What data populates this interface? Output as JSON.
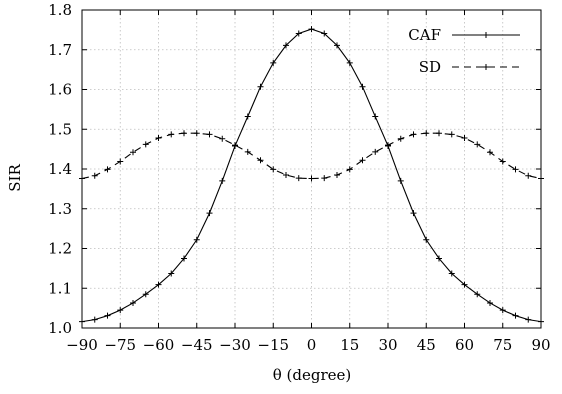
{
  "chart_data": {
    "type": "line",
    "xlabel": "θ (degree)",
    "ylabel": "SIR",
    "xlim": [
      -90,
      90
    ],
    "ylim": [
      1.0,
      1.8
    ],
    "x_ticks": [
      -90,
      -75,
      -60,
      -45,
      -30,
      -15,
      0,
      15,
      30,
      45,
      60,
      75,
      90
    ],
    "y_ticks": [
      1.0,
      1.1,
      1.2,
      1.3,
      1.4,
      1.5,
      1.6,
      1.7,
      1.8
    ],
    "grid": true,
    "legend_position": "top-right",
    "x": [
      -90,
      -85,
      -80,
      -75,
      -70,
      -65,
      -60,
      -55,
      -50,
      -45,
      -40,
      -35,
      -30,
      -25,
      -20,
      -15,
      -10,
      -5,
      0,
      5,
      10,
      15,
      20,
      25,
      30,
      35,
      40,
      45,
      50,
      55,
      60,
      65,
      70,
      75,
      80,
      85,
      90
    ],
    "series": [
      {
        "name": "CAF",
        "marker": "+",
        "dash": "solid",
        "color": "#000000",
        "values": [
          1.016,
          1.021,
          1.031,
          1.045,
          1.063,
          1.085,
          1.109,
          1.137,
          1.175,
          1.222,
          1.289,
          1.37,
          1.458,
          1.532,
          1.607,
          1.667,
          1.711,
          1.741,
          1.752,
          1.741,
          1.711,
          1.667,
          1.607,
          1.532,
          1.458,
          1.37,
          1.289,
          1.222,
          1.175,
          1.137,
          1.109,
          1.085,
          1.063,
          1.045,
          1.031,
          1.021,
          1.016
        ]
      },
      {
        "name": "SD",
        "marker": "+",
        "dash": "dashed",
        "color": "#000000",
        "values": [
          1.376,
          1.383,
          1.399,
          1.419,
          1.442,
          1.462,
          1.478,
          1.487,
          1.49,
          1.49,
          1.487,
          1.476,
          1.46,
          1.443,
          1.422,
          1.399,
          1.385,
          1.377,
          1.376,
          1.377,
          1.385,
          1.399,
          1.422,
          1.443,
          1.46,
          1.476,
          1.487,
          1.49,
          1.49,
          1.487,
          1.478,
          1.462,
          1.442,
          1.419,
          1.399,
          1.383,
          1.376
        ]
      }
    ]
  }
}
